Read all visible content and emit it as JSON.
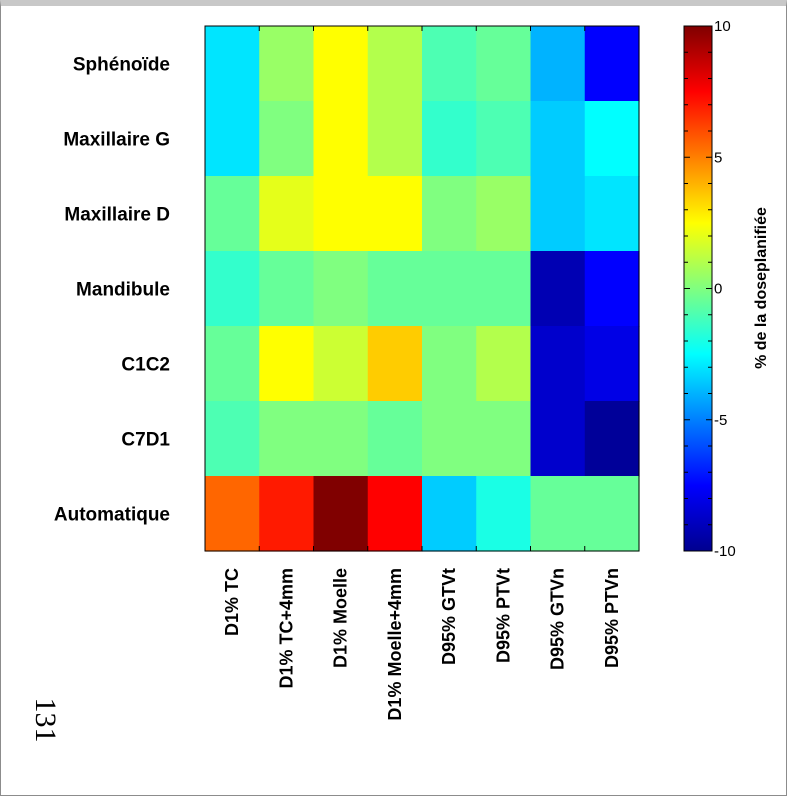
{
  "chart_data": {
    "type": "heatmap",
    "rows": [
      "Sphénoïde",
      "Maxillaire G",
      "Maxillaire D",
      "Mandibule",
      "C1C2",
      "C7D1",
      "Automatique"
    ],
    "columns": [
      "D1% TC",
      "D1% TC+4mm",
      "D1% Moelle",
      "D1% Moelle+4mm",
      "D95% GTVt",
      "D95% PTVt",
      "D95% GTVn",
      "D95% PTVn"
    ],
    "values": [
      [
        -3.0,
        0.5,
        2.5,
        1.0,
        -1.0,
        -0.5,
        -4.0,
        -7.5
      ],
      [
        -3.0,
        0.0,
        2.5,
        1.0,
        -1.5,
        -1.0,
        -3.5,
        -2.5
      ],
      [
        -0.5,
        2.0,
        2.5,
        2.5,
        0.0,
        0.5,
        -3.5,
        -3.0
      ],
      [
        -1.5,
        -0.5,
        0.0,
        -0.5,
        -0.5,
        -0.5,
        -9.0,
        -7.5
      ],
      [
        -0.5,
        2.5,
        1.5,
        3.5,
        0.0,
        1.0,
        -8.5,
        -8.0
      ],
      [
        -1.0,
        0.0,
        0.0,
        -0.5,
        0.0,
        0.0,
        -8.5,
        -9.5
      ],
      [
        5.5,
        7.0,
        10.0,
        7.5,
        -3.5,
        -2.0,
        -0.5,
        -0.5
      ]
    ],
    "colorbar": {
      "min": -10,
      "max": 10,
      "ticks": [
        10,
        5,
        0,
        -5,
        -10
      ],
      "tick_labels": [
        "10",
        "5",
        "0",
        "-5",
        "-10"
      ],
      "label": "% de la doseplanifiée",
      "colormap": "jet"
    }
  },
  "page_number": "131"
}
